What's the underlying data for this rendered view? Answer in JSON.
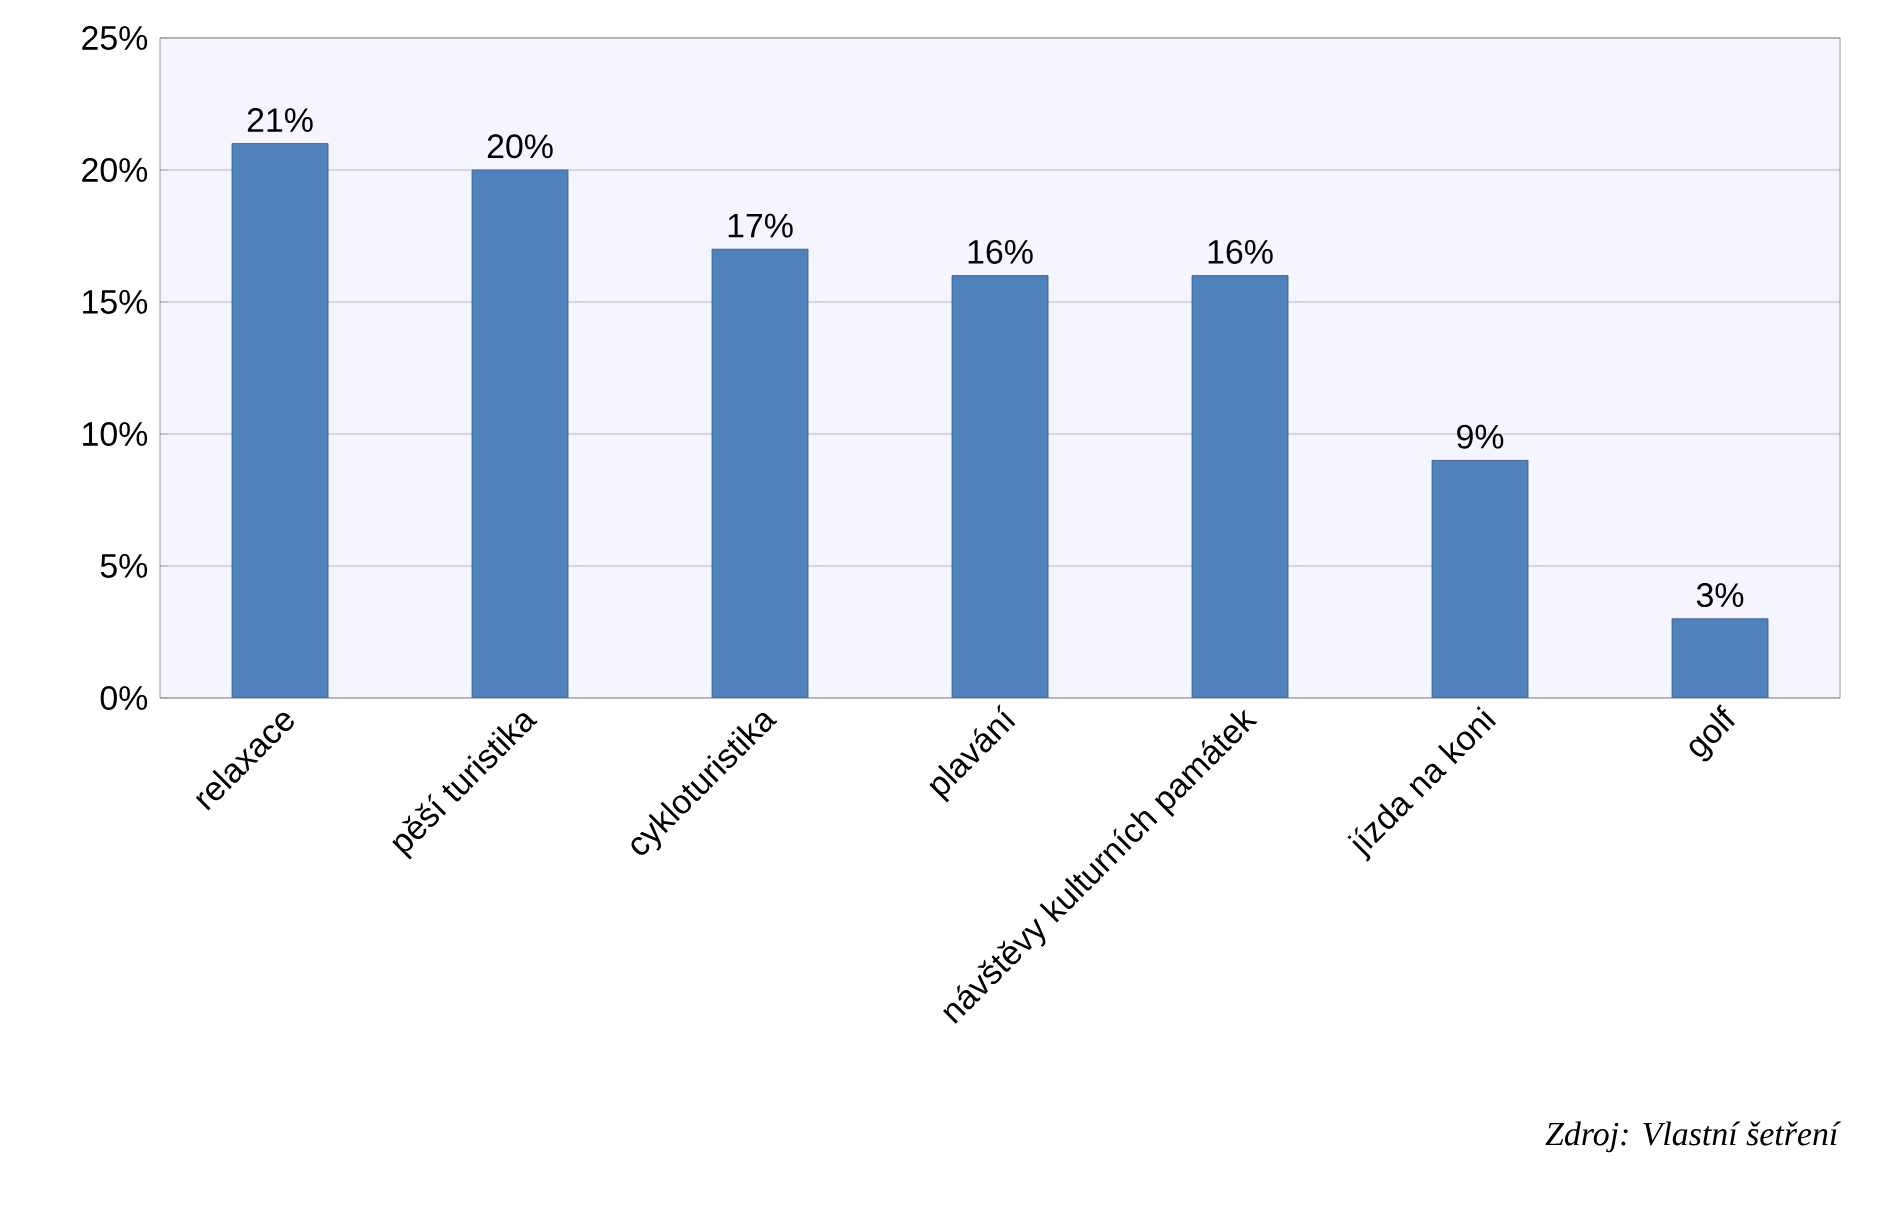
{
  "chart_data": {
    "type": "bar",
    "categories": [
      "relaxace",
      "pěší turistika",
      "cykloturistika",
      "plavání",
      "návštěvy kulturních památek",
      "jízda na koni",
      "golf"
    ],
    "values": [
      21,
      20,
      17,
      16,
      16,
      9,
      3
    ],
    "value_labels": [
      "21%",
      "20%",
      "17%",
      "16%",
      "16%",
      "9%",
      "3%"
    ],
    "color": "#4f81bd",
    "ylim": [
      0,
      25
    ],
    "yticks": [
      {
        "value": 0,
        "label": "0%"
      },
      {
        "value": 5,
        "label": "5%"
      },
      {
        "value": 10,
        "label": "10%"
      },
      {
        "value": 15,
        "label": "15%"
      },
      {
        "value": 20,
        "label": "20%"
      },
      {
        "value": 25,
        "label": "25%"
      }
    ],
    "grid": "y",
    "annotations": [
      "Zdroj: Vlastní šetření"
    ]
  }
}
